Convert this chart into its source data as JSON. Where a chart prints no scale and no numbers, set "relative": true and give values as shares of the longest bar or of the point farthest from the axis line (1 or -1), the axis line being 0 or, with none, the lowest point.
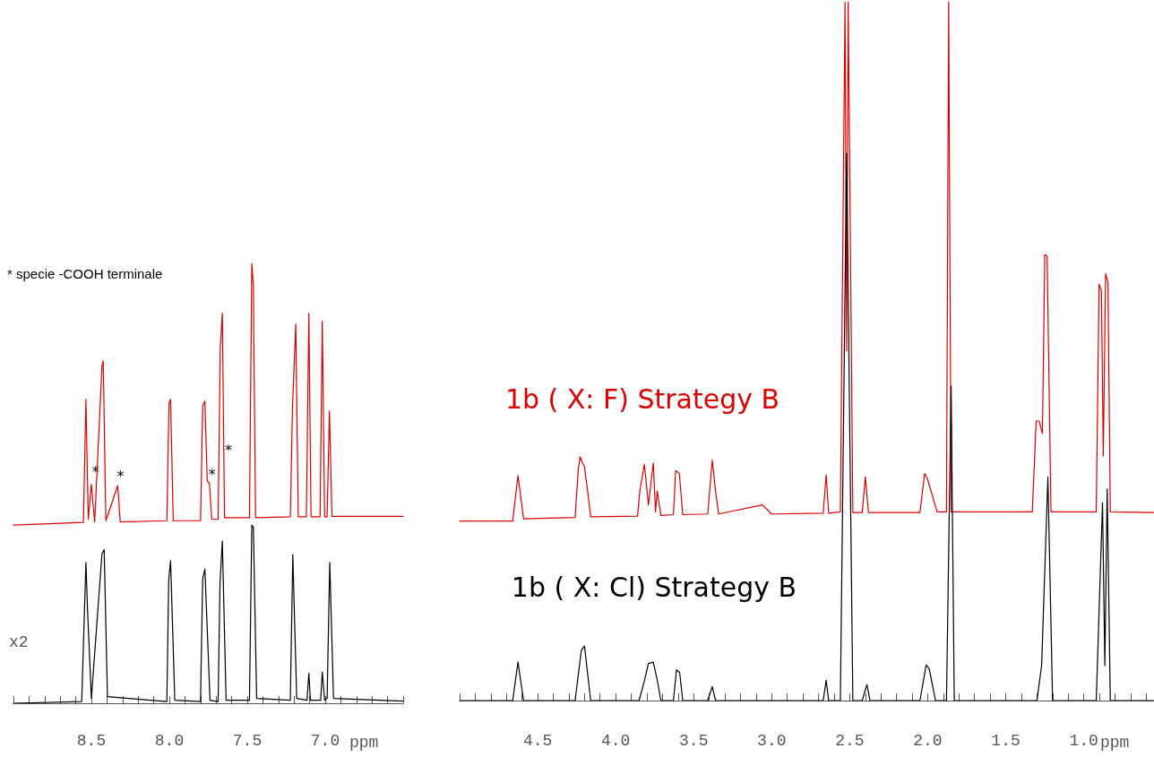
{
  "chart_data": [
    {
      "type": "line",
      "relative": true,
      "xlabel": "ppm",
      "xlim": [
        9.0,
        6.5
      ],
      "marker": "none",
      "legend": false,
      "grid": false,
      "xticks": [
        {
          "value": 9.0,
          "label": null
        },
        {
          "value": 8.9,
          "label": null
        },
        {
          "value": 8.8,
          "label": null
        },
        {
          "value": 8.7,
          "label": null
        },
        {
          "value": 8.6,
          "label": null
        },
        {
          "value": 8.5,
          "label": "8.5"
        },
        {
          "value": 8.4,
          "label": null
        },
        {
          "value": 8.3,
          "label": null
        },
        {
          "value": 8.2,
          "label": null
        },
        {
          "value": 8.1,
          "label": null
        },
        {
          "value": 8.0,
          "label": "8.0"
        },
        {
          "value": 7.9,
          "label": null
        },
        {
          "value": 7.8,
          "label": null
        },
        {
          "value": 7.7,
          "label": null
        },
        {
          "value": 7.6,
          "label": null
        },
        {
          "value": 7.5,
          "label": "7.5"
        },
        {
          "value": 7.4,
          "label": null
        },
        {
          "value": 7.3,
          "label": null
        },
        {
          "value": 7.2,
          "label": null
        },
        {
          "value": 7.1,
          "label": null
        },
        {
          "value": 7.0,
          "label": "7.0"
        },
        {
          "value": 6.9,
          "label": null
        },
        {
          "value": 6.8,
          "label": null
        },
        {
          "value": 6.7,
          "label": null
        },
        {
          "value": 6.6,
          "label": null
        },
        {
          "value": 6.5,
          "label": null
        }
      ],
      "annotations": [
        "* specie -COOH terminale",
        "x2",
        {
          "text": "*",
          "x": 8.49,
          "y": 0.507
        },
        {
          "text": "*",
          "x": 8.331,
          "y": 0.495
        },
        {
          "text": "*",
          "x": 7.743,
          "y": 0.5
        },
        "*"
      ],
      "series": [
        {
          "color": "#dd0000",
          "x": [
            9.0,
            8.551,
            8.535,
            8.52,
            8.5,
            8.479,
            8.432,
            8.424,
            8.407,
            8.331,
            8.315,
            8.016,
            8.002,
            7.992,
            7.975,
            7.8,
            7.786,
            7.772,
            7.757,
            7.743,
            7.728,
            7.687,
            7.673,
            7.66,
            7.646,
            7.486,
            7.471,
            7.461,
            7.447,
            7.224,
            7.21,
            7.189,
            7.173,
            7.121,
            7.105,
            7.091,
            7.033,
            7.019,
            7.004,
            6.988,
            6.973,
            6.957,
            6.5
          ],
          "values": [
            0.405,
            0.411,
            0.691,
            0.418,
            0.498,
            0.412,
            0.767,
            0.778,
            0.415,
            0.495,
            0.412,
            0.415,
            0.684,
            0.691,
            0.415,
            0.415,
            0.676,
            0.687,
            0.505,
            0.5,
            0.418,
            0.418,
            0.811,
            0.887,
            0.422,
            0.422,
            1.0,
            0.949,
            0.422,
            0.424,
            0.673,
            0.862,
            0.424,
            0.424,
            0.887,
            0.424,
            0.424,
            0.869,
            0.424,
            0.424,
            0.665,
            0.425,
            0.425
          ]
        },
        {
          "color": "#000000",
          "x": [
            9.0,
            8.562,
            8.535,
            8.525,
            8.5,
            8.432,
            8.418,
            8.397,
            8.016,
            8.004,
            7.992,
            7.965,
            7.8,
            7.786,
            7.772,
            7.739,
            7.687,
            7.675,
            7.66,
            7.636,
            7.486,
            7.471,
            7.461,
            7.44,
            7.224,
            7.208,
            7.183,
            7.117,
            7.105,
            7.095,
            7.029,
            7.019,
            7.004,
            6.988,
            6.971,
            6.947,
            6.5
          ],
          "values": [
            0,
            0.004,
            0.32,
            0.215,
            0.011,
            0.34,
            0.349,
            0.015,
            0.004,
            0.28,
            0.324,
            0.007,
            0.004,
            0.284,
            0.305,
            0.007,
            0.004,
            0.273,
            0.369,
            0.007,
            0.007,
            0.405,
            0.4,
            0.011,
            0.007,
            0.338,
            0.011,
            0.007,
            0.068,
            0.007,
            0.007,
            0.071,
            0.007,
            0.011,
            0.32,
            0.011,
            0.005
          ]
        }
      ]
    },
    {
      "type": "line",
      "relative": true,
      "xlabel": "ppm",
      "xlim": [
        5.0,
        0.55
      ],
      "marker": "none",
      "legend": false,
      "grid": false,
      "xticks": [
        {
          "value": 5.0,
          "label": null
        },
        {
          "value": 4.9,
          "label": null
        },
        {
          "value": 4.8,
          "label": null
        },
        {
          "value": 4.7,
          "label": null
        },
        {
          "value": 4.6,
          "label": null
        },
        {
          "value": 4.5,
          "label": "4.5"
        },
        {
          "value": 4.4,
          "label": null
        },
        {
          "value": 4.3,
          "label": null
        },
        {
          "value": 4.2,
          "label": null
        },
        {
          "value": 4.1,
          "label": null
        },
        {
          "value": 4.0,
          "label": "4.0"
        },
        {
          "value": 3.9,
          "label": null
        },
        {
          "value": 3.8,
          "label": null
        },
        {
          "value": 3.7,
          "label": null
        },
        {
          "value": 3.6,
          "label": null
        },
        {
          "value": 3.5,
          "label": "3.5"
        },
        {
          "value": 3.4,
          "label": null
        },
        {
          "value": 3.3,
          "label": null
        },
        {
          "value": 3.2,
          "label": null
        },
        {
          "value": 3.1,
          "label": null
        },
        {
          "value": 3.0,
          "label": "3.0"
        },
        {
          "value": 2.9,
          "label": null
        },
        {
          "value": 2.8,
          "label": null
        },
        {
          "value": 2.7,
          "label": null
        },
        {
          "value": 2.6,
          "label": null
        },
        {
          "value": 2.5,
          "label": "2.5"
        },
        {
          "value": 2.4,
          "label": null
        },
        {
          "value": 2.3,
          "label": null
        },
        {
          "value": 2.2,
          "label": null
        },
        {
          "value": 2.1,
          "label": null
        },
        {
          "value": 2.0,
          "label": "2.0"
        },
        {
          "value": 1.9,
          "label": null
        },
        {
          "value": 1.8,
          "label": null
        },
        {
          "value": 1.7,
          "label": null
        },
        {
          "value": 1.6,
          "label": null
        },
        {
          "value": 1.5,
          "label": "1.5"
        },
        {
          "value": 1.4,
          "label": null
        },
        {
          "value": 1.3,
          "label": null
        },
        {
          "value": 1.2,
          "label": null
        },
        {
          "value": 1.1,
          "label": null
        },
        {
          "value": 1.0,
          "label": "1.0"
        },
        {
          "value": 0.9,
          "label": null
        },
        {
          "value": 0.8,
          "label": null
        },
        {
          "value": 0.7,
          "label": null
        },
        {
          "value": 0.6,
          "label": null
        }
      ],
      "series": [
        {
          "name": "1b ( X: F) Strategy B",
          "color": "#dd0000",
          "x": [
            5.0,
            4.66,
            4.626,
            4.59,
            4.26,
            4.24,
            4.228,
            4.213,
            4.2,
            4.18,
            4.16,
            3.86,
            3.845,
            3.816,
            3.79,
            3.759,
            3.745,
            3.734,
            3.71,
            3.63,
            3.615,
            3.592,
            3.57,
            3.41,
            3.381,
            3.36,
            3.34,
            3.06,
            3.0,
            2.67,
            2.651,
            2.635,
            2.56,
            2.53,
            2.52,
            2.51,
            2.48,
            2.42,
            2.4,
            2.38,
            2.05,
            2.02,
            2.003,
            1.966,
            1.94,
            1.88,
            1.866,
            1.85,
            1.33,
            1.305,
            1.287,
            1.265,
            1.25,
            1.235,
            1.21,
            0.92,
            0.902,
            0.887,
            0.875,
            0.86,
            0.845,
            0.83,
            0.55
          ],
          "values": [
            0.257,
            0.257,
            0.322,
            0.26,
            0.262,
            0.33,
            0.349,
            0.34,
            0.335,
            0.3,
            0.263,
            0.264,
            0.3,
            0.338,
            0.28,
            0.34,
            0.27,
            0.3,
            0.265,
            0.266,
            0.329,
            0.325,
            0.266,
            0.267,
            0.344,
            0.3,
            0.267,
            0.28,
            0.267,
            0.268,
            0.323,
            0.268,
            0.27,
            1.0,
            0.5,
            1.0,
            0.269,
            0.269,
            0.32,
            0.269,
            0.269,
            0.325,
            0.318,
            0.29,
            0.27,
            0.27,
            1.0,
            0.27,
            0.27,
            0.4,
            0.4,
            0.382,
            0.638,
            0.636,
            0.27,
            0.27,
            0.596,
            0.586,
            0.35,
            0.611,
            0.598,
            0.27,
            0.269
          ]
        },
        {
          "name": "1b ( X: Cl) Strategy B",
          "color": "#000000",
          "x": [
            5.0,
            4.66,
            4.626,
            4.59,
            4.26,
            4.22,
            4.2,
            4.16,
            3.85,
            3.816,
            3.79,
            3.759,
            3.734,
            3.71,
            3.63,
            3.61,
            3.59,
            3.57,
            3.41,
            3.381,
            3.36,
            2.67,
            2.651,
            2.635,
            2.56,
            2.52,
            2.48,
            2.42,
            2.39,
            2.37,
            2.05,
            2.01,
            1.99,
            1.95,
            1.88,
            1.85,
            1.83,
            1.3,
            1.27,
            1.23,
            1.2,
            0.92,
            0.88,
            0.865,
            0.85,
            0.83,
            0.55
          ],
          "values": [
            0,
            0,
            0.055,
            0,
            0,
            0.072,
            0.078,
            0,
            0,
            0.028,
            0.053,
            0.055,
            0.03,
            0,
            0,
            0.044,
            0.04,
            0,
            0,
            0.02,
            0,
            0,
            0.029,
            0,
            0,
            0.783,
            0,
            0,
            0.023,
            0,
            0,
            0.051,
            0.045,
            0,
            0,
            0.45,
            0,
            0,
            0.051,
            0.32,
            0,
            0,
            0.283,
            0.05,
            0.303,
            0,
            0
          ]
        }
      ]
    }
  ]
}
